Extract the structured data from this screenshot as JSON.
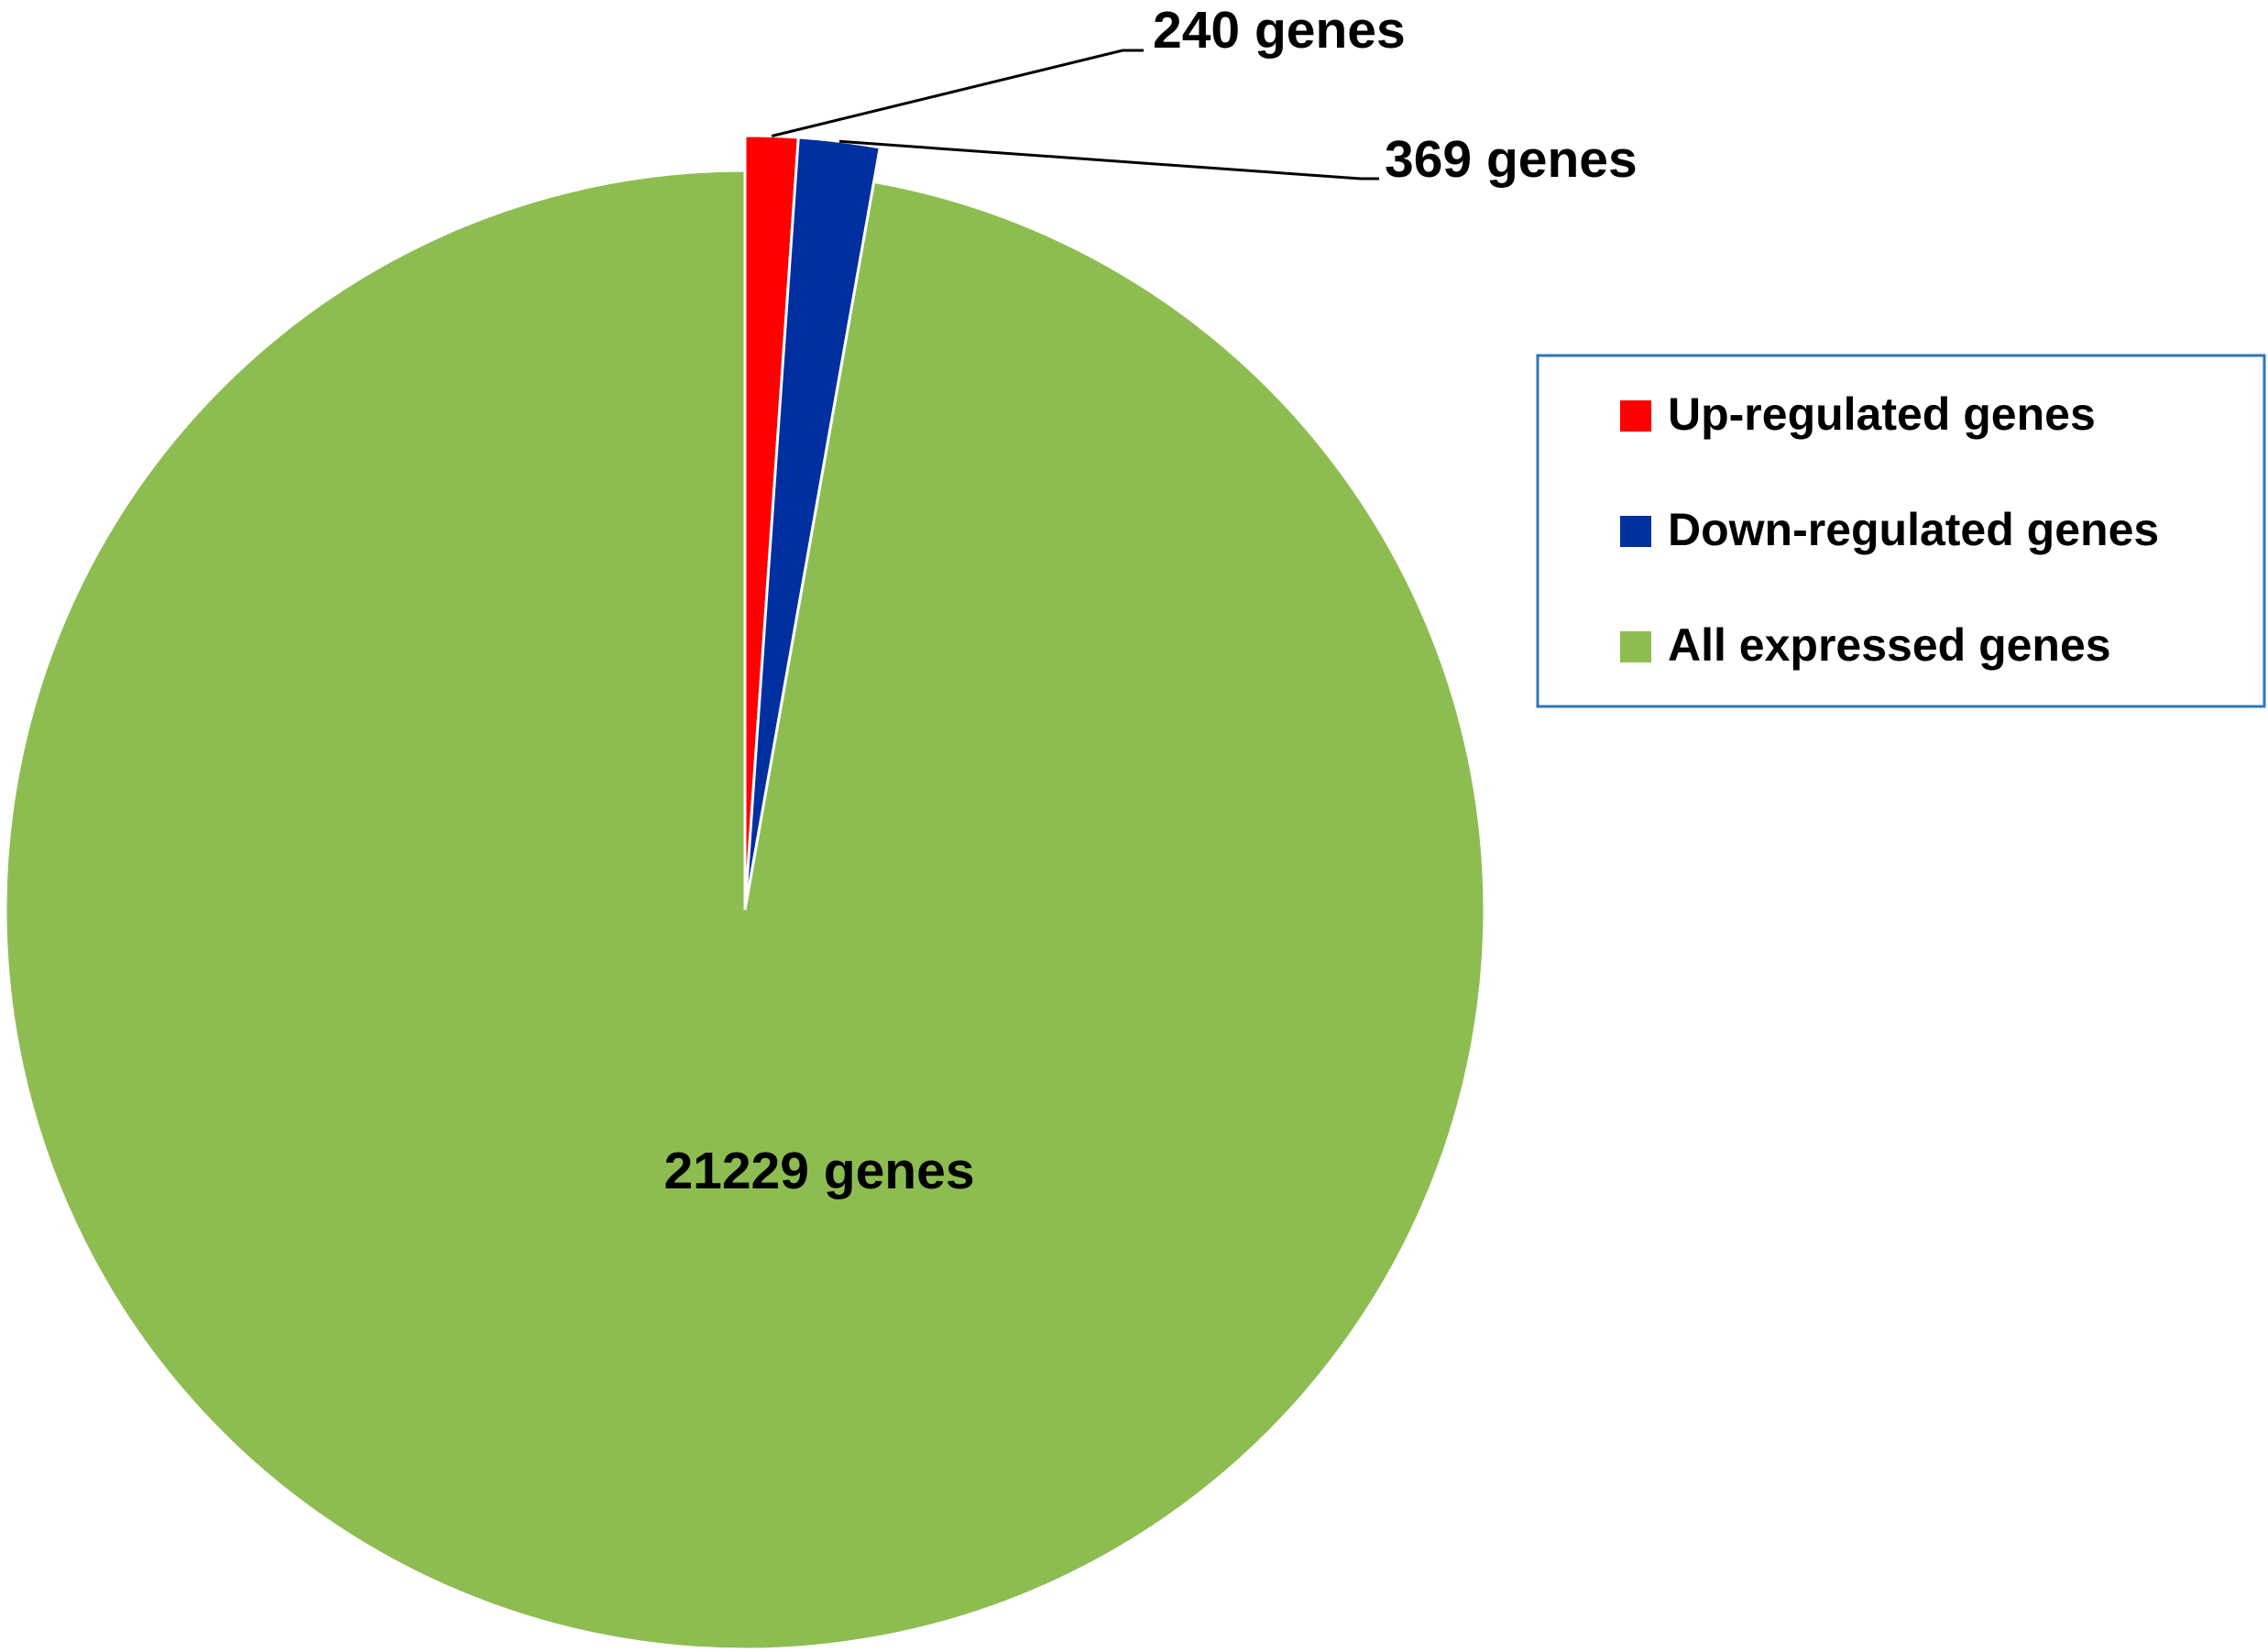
{
  "chart_data": {
    "type": "pie",
    "title": "",
    "start_angle_deg": 0,
    "direction": "clockwise",
    "categories": [
      "Up-regulated genes",
      "Down-regulated genes",
      "All expressed genes"
    ],
    "values": [
      240,
      369,
      21229
    ],
    "colors": [
      "#FF0000",
      "#002FA0",
      "#8DBD51"
    ],
    "data_labels": [
      "240 genes",
      "369 genes",
      "21229 genes"
    ],
    "legend": {
      "position": "right",
      "entries": [
        "Up-regulated genes",
        "Down-regulated genes",
        "All expressed genes"
      ],
      "border_color": "#2E75B6"
    }
  }
}
